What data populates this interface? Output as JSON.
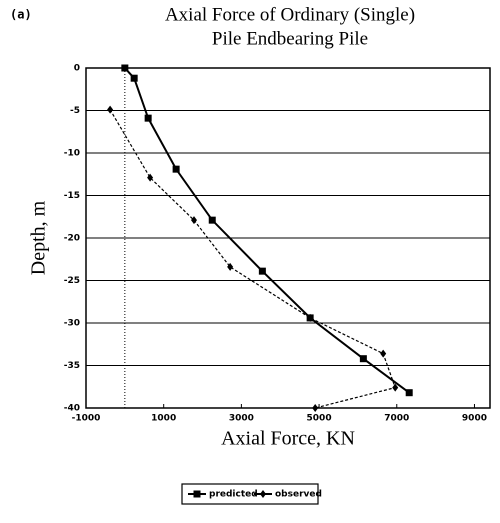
{
  "panel_label": "(a)",
  "chart_data": {
    "type": "line",
    "title": [
      "Axial Force of Ordinary (Single)",
      "Pile Endbearing Pile"
    ],
    "x_label": "Axial Force, KN",
    "y_label": "Depth, m",
    "xlim": [
      -1000,
      9400
    ],
    "ylim": [
      -40,
      0
    ],
    "xticks": [
      -1000,
      1000,
      3000,
      5000,
      7000,
      9000
    ],
    "yticks": [
      0,
      -5,
      -10,
      -15,
      -20,
      -25,
      -30,
      -35,
      -40
    ],
    "grid": true,
    "reference_line_x": 0,
    "legend": "bottom",
    "series": [
      {
        "name": "predicted",
        "color": "#000000",
        "dash": false,
        "marker": "square",
        "x": [
          0,
          240,
          600,
          1320,
          2250,
          3540,
          4770,
          6140,
          7320
        ],
        "values": [
          0,
          -1.2,
          -5.9,
          -11.9,
          -17.9,
          -23.9,
          -29.4,
          -34.2,
          -38.2
        ]
      },
      {
        "name": "observed",
        "color": "#000000",
        "dash": true,
        "marker": "diamond",
        "x": [
          -380,
          650,
          1780,
          2710,
          4770,
          6650,
          6960,
          4900
        ],
        "values": [
          -4.9,
          -12.9,
          -17.9,
          -23.4,
          -29.4,
          -33.6,
          -37.6,
          -40
        ]
      }
    ]
  }
}
